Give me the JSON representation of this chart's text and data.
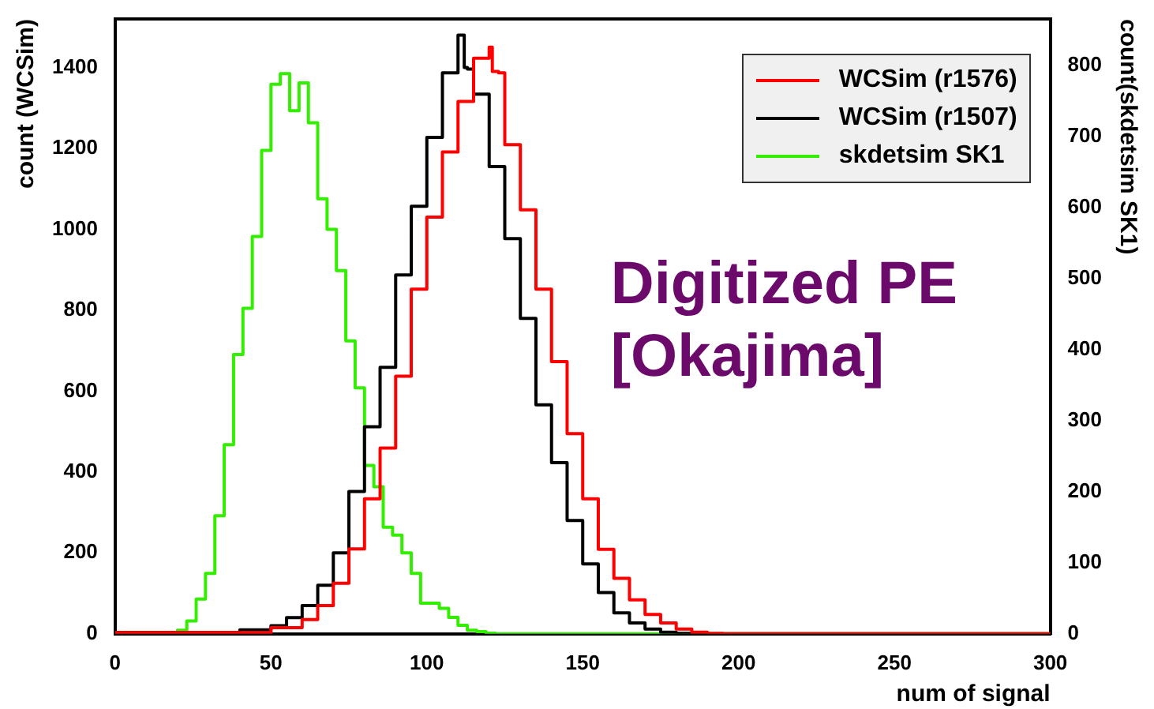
{
  "chart_data": {
    "type": "step",
    "xlabel": "num of signal",
    "ylabel": "count (WCSim)",
    "y2label": "count(skdetsim SK1)",
    "xlim": [
      0,
      300
    ],
    "xticks": [
      0,
      50,
      100,
      150,
      200,
      250,
      300
    ],
    "ylim": [
      0,
      1520
    ],
    "yticks": [
      0,
      200,
      400,
      600,
      800,
      1000,
      1200,
      1400
    ],
    "y2lim": [
      0,
      865
    ],
    "y2ticks": [
      0,
      100,
      200,
      300,
      400,
      500,
      600,
      700,
      800
    ],
    "grid": false,
    "legend": "top right",
    "marker": "none",
    "line_style": "solid",
    "annotations": [
      "Digitized PE",
      "[Okajima]"
    ],
    "series": [
      {
        "name": "WCSim (r1576)",
        "color": "#ff0000",
        "x": [
          0,
          50,
          60,
          65,
          70,
          75,
          80,
          85,
          90,
          95,
          100,
          105,
          110,
          115,
          120,
          121,
          123,
          125,
          130,
          135,
          140,
          145,
          150,
          155,
          160,
          165,
          170,
          175,
          180,
          185,
          190,
          195,
          200,
          300
        ],
        "values": [
          0,
          3,
          15,
          35,
          70,
          125,
          210,
          334,
          459,
          637,
          852,
          1030,
          1191,
          1316,
          1423,
          1450,
          1390,
          1387,
          1209,
          1048,
          852,
          673,
          495,
          334,
          209,
          137,
          84,
          48,
          27,
          12,
          4,
          1,
          0,
          0
        ]
      },
      {
        "name": "WCSim (r1507)",
        "color": "#000000",
        "x": [
          0,
          40,
          50,
          55,
          60,
          65,
          70,
          75,
          80,
          85,
          90,
          95,
          100,
          105,
          110,
          112,
          113,
          115,
          120,
          125,
          130,
          135,
          140,
          145,
          150,
          155,
          160,
          165,
          170,
          175,
          180,
          185,
          190,
          300
        ],
        "values": [
          0,
          3,
          10,
          20,
          40,
          70,
          120,
          200,
          352,
          512,
          659,
          887,
          1057,
          1227,
          1387,
          1480,
          1400,
          1396,
          1334,
          1155,
          977,
          780,
          566,
          423,
          280,
          173,
          102,
          52,
          27,
          12,
          4,
          1,
          0,
          0
        ]
      },
      {
        "name": "skdetsim SK1",
        "color": "#33ee00",
        "axis": "y2",
        "x": [
          0,
          20,
          23,
          26,
          29,
          32,
          35,
          38,
          41,
          44,
          47,
          50,
          53,
          56,
          59,
          62,
          65,
          68,
          71,
          74,
          77,
          80,
          83,
          86,
          89,
          92,
          95,
          98,
          101,
          104,
          107,
          110,
          113,
          116,
          119,
          122,
          125,
          300
        ],
        "values": [
          0,
          2,
          5,
          18,
          49,
          85,
          166,
          266,
          393,
          458,
          559,
          680,
          773,
          788,
          736,
          775,
          719,
          612,
          569,
          511,
          412,
          346,
          237,
          207,
          150,
          139,
          114,
          85,
          43,
          43,
          36,
          23,
          12,
          5,
          3,
          1,
          0,
          0
        ]
      }
    ]
  }
}
